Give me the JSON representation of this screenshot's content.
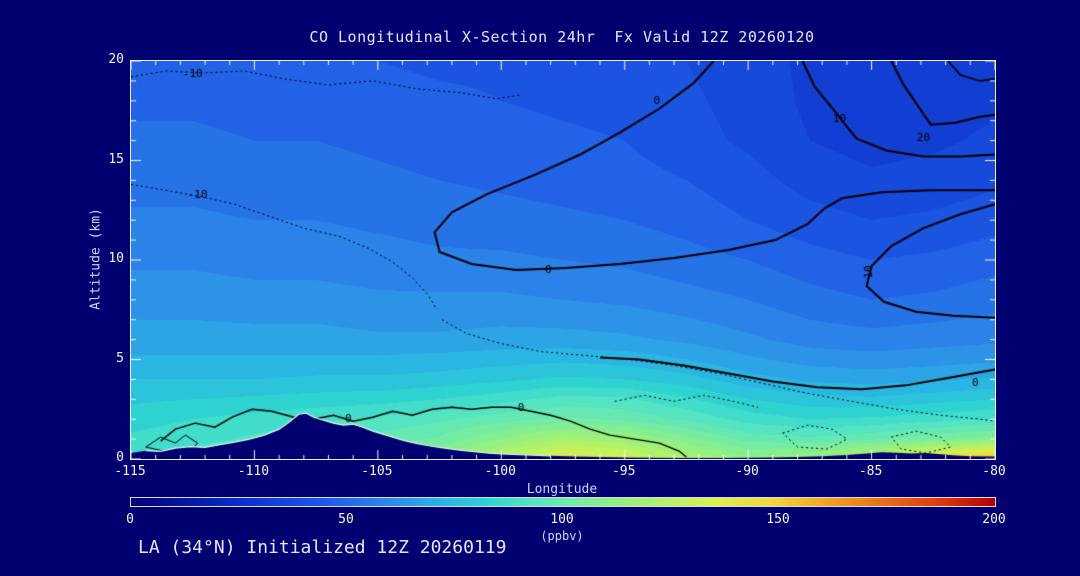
{
  "page": {
    "background_color": "#000070",
    "text_color": "#e8e4ff",
    "axis_text_color": "#ccd6ff",
    "tick_text_color": "#f4f4f4",
    "title": "CO Longitudinal X-Section 24hr  Fx Valid 12Z 20260120",
    "footer": "LA (34°N) Initialized 12Z 20260119"
  },
  "chart_data": {
    "type": "heatmap",
    "title": "CO Longitudinal X-Section 24hr  Fx Valid 12Z 20260120",
    "xlabel": "Longitude",
    "ylabel": "Altitude (km)",
    "units": "ppbv",
    "xlim": [
      -115,
      -80
    ],
    "ylim": [
      0,
      20
    ],
    "x_ticks": [
      -115,
      -110,
      -105,
      -100,
      -95,
      -90,
      -85,
      -80
    ],
    "y_ticks": [
      0,
      5,
      10,
      15,
      20
    ],
    "band_interval": 5,
    "grid_lons": [
      -115,
      -112.5,
      -110,
      -107.5,
      -105,
      -102.5,
      -100,
      -97.5,
      -95,
      -92.5,
      -90,
      -87.5,
      -85,
      -82.5,
      -80
    ],
    "grid_alts": [
      0,
      1,
      2,
      3,
      4,
      5,
      6,
      8,
      10,
      12,
      14,
      16,
      18,
      20
    ],
    "values": [
      [
        90,
        93,
        96,
        100,
        104,
        112,
        126,
        140,
        134,
        121,
        112,
        116,
        128,
        146,
        158
      ],
      [
        86,
        88,
        91,
        94,
        97,
        101,
        110,
        120,
        116,
        107,
        98,
        96,
        99,
        104,
        108
      ],
      [
        83,
        85,
        87,
        89,
        91,
        94,
        98,
        101,
        99,
        94,
        88,
        85,
        86,
        88,
        90
      ],
      [
        79,
        80,
        81,
        82,
        83,
        85,
        88,
        92,
        91,
        86,
        80,
        77,
        76,
        78,
        80
      ],
      [
        75,
        75,
        75,
        76,
        76,
        77,
        79,
        81,
        80,
        77,
        72,
        69,
        68,
        69,
        71
      ],
      [
        71,
        71,
        71,
        71,
        71,
        72,
        73,
        74,
        73,
        70,
        66,
        63,
        62,
        63,
        64
      ],
      [
        67,
        67,
        67,
        67,
        66,
        66,
        67,
        67,
        66,
        64,
        61,
        58,
        57,
        58,
        59
      ],
      [
        63,
        63,
        62,
        62,
        61,
        61,
        61,
        60,
        59,
        57,
        55,
        52,
        50,
        51,
        53
      ],
      [
        59,
        59,
        58,
        58,
        57,
        56,
        56,
        55,
        54,
        52,
        50,
        47,
        45,
        46,
        48
      ],
      [
        56,
        56,
        55,
        55,
        54,
        53,
        52,
        51,
        50,
        48,
        45,
        42,
        40,
        41,
        43
      ],
      [
        53,
        53,
        52,
        52,
        51,
        50,
        49,
        48,
        47,
        45,
        42,
        38,
        36,
        37,
        39
      ],
      [
        51,
        51,
        50,
        50,
        49,
        48,
        47,
        46,
        45,
        42,
        39,
        35,
        33,
        34,
        36
      ],
      [
        49,
        49,
        48,
        48,
        47,
        46,
        45,
        44,
        43,
        41,
        38,
        34,
        32,
        33,
        34
      ],
      [
        47,
        47,
        46,
        46,
        45,
        44,
        44,
        43,
        42,
        40,
        37,
        34,
        32,
        32,
        33
      ]
    ],
    "colormap": [
      {
        "v": 0,
        "c": "#000074"
      },
      {
        "v": 25,
        "c": "#0a2ec8"
      },
      {
        "v": 45,
        "c": "#1e5ae6"
      },
      {
        "v": 60,
        "c": "#2e8ae8"
      },
      {
        "v": 72,
        "c": "#2ab4e4"
      },
      {
        "v": 82,
        "c": "#2cd2d2"
      },
      {
        "v": 92,
        "c": "#52e4c4"
      },
      {
        "v": 102,
        "c": "#74eca4"
      },
      {
        "v": 112,
        "c": "#92f084"
      },
      {
        "v": 124,
        "c": "#b4f266"
      },
      {
        "v": 136,
        "c": "#dcee4e"
      },
      {
        "v": 148,
        "c": "#f0d838"
      },
      {
        "v": 160,
        "c": "#f0a824"
      },
      {
        "v": 175,
        "c": "#e86c14"
      },
      {
        "v": 188,
        "c": "#d8380a"
      },
      {
        "v": 200,
        "c": "#b00000"
      }
    ],
    "colorbar": {
      "min": 0,
      "max": 200,
      "ticks": [
        0,
        50,
        100,
        150,
        200
      ],
      "label": "(ppbv)"
    },
    "terrain_color": "#000070",
    "terrain_edge_color": "#ddfaf0",
    "terrain": [
      [
        -115,
        0.3
      ],
      [
        -114.4,
        0.42
      ],
      [
        -113.8,
        0.38
      ],
      [
        -113.2,
        0.55
      ],
      [
        -112.6,
        0.62
      ],
      [
        -112,
        0.58
      ],
      [
        -111.4,
        0.72
      ],
      [
        -110.8,
        0.85
      ],
      [
        -110.2,
        1.0
      ],
      [
        -109.6,
        1.2
      ],
      [
        -109,
        1.5
      ],
      [
        -108.6,
        1.85
      ],
      [
        -108.2,
        2.25
      ],
      [
        -107.9,
        2.3
      ],
      [
        -107.6,
        2.1
      ],
      [
        -107.2,
        1.95
      ],
      [
        -106.8,
        1.8
      ],
      [
        -106.4,
        1.7
      ],
      [
        -106,
        1.75
      ],
      [
        -105.6,
        1.6
      ],
      [
        -105.2,
        1.4
      ],
      [
        -104.8,
        1.25
      ],
      [
        -104.4,
        1.1
      ],
      [
        -104,
        0.95
      ],
      [
        -103.5,
        0.8
      ],
      [
        -103,
        0.68
      ],
      [
        -102.5,
        0.58
      ],
      [
        -102,
        0.5
      ],
      [
        -101.5,
        0.42
      ],
      [
        -101,
        0.36
      ],
      [
        -100.5,
        0.3
      ],
      [
        -100,
        0.26
      ],
      [
        -99,
        0.2
      ],
      [
        -98,
        0.16
      ],
      [
        -97,
        0.12
      ],
      [
        -96,
        0.1
      ],
      [
        -95,
        0.08
      ],
      [
        -94,
        0.06
      ],
      [
        -93,
        0.05
      ],
      [
        -92,
        0.05
      ],
      [
        -91,
        0.05
      ],
      [
        -90,
        0.06
      ],
      [
        -89,
        0.08
      ],
      [
        -88,
        0.1
      ],
      [
        -87,
        0.14
      ],
      [
        -86,
        0.2
      ],
      [
        -85.2,
        0.28
      ],
      [
        -84.6,
        0.34
      ],
      [
        -84,
        0.32
      ],
      [
        -83.4,
        0.28
      ],
      [
        -82.8,
        0.3
      ],
      [
        -82.2,
        0.24
      ],
      [
        -81.6,
        0.18
      ],
      [
        -81,
        0.14
      ],
      [
        -80,
        0.12
      ]
    ],
    "contour_levels_shown": [
      -10,
      0,
      10,
      20
    ],
    "contours": [
      {
        "level": -10,
        "style": "dotted",
        "w": 1,
        "points": [
          [
            -115,
            19.2
          ],
          [
            -113.6,
            19.5
          ],
          [
            -112,
            19.4
          ],
          [
            -110.4,
            19.5
          ],
          [
            -108.8,
            19.1
          ],
          [
            -107,
            18.8
          ],
          [
            -105.2,
            19.0
          ],
          [
            -103.4,
            18.6
          ],
          [
            -101.6,
            18.4
          ],
          [
            -100.2,
            18.1
          ],
          [
            -99.2,
            18.3
          ]
        ]
      },
      {
        "level": -10,
        "style": "dotted",
        "w": 1,
        "points": [
          [
            -115,
            13.8
          ],
          [
            -113.6,
            13.5
          ],
          [
            -112.2,
            13.2
          ],
          [
            -110.8,
            12.8
          ],
          [
            -109.4,
            12.2
          ],
          [
            -108,
            11.6
          ],
          [
            -106.6,
            11.2
          ],
          [
            -105.4,
            10.6
          ],
          [
            -104.4,
            9.9
          ],
          [
            -103.6,
            9.1
          ],
          [
            -103,
            8.3
          ],
          [
            -102.6,
            7.5
          ]
        ]
      },
      {
        "level": -10,
        "style": "dotted",
        "w": 1,
        "points": [
          [
            -102.4,
            7.0
          ],
          [
            -101.4,
            6.3
          ],
          [
            -100,
            5.8
          ],
          [
            -98.4,
            5.4
          ],
          [
            -96.6,
            5.2
          ],
          [
            -94.8,
            5.0
          ],
          [
            -93,
            4.7
          ],
          [
            -91.2,
            4.3
          ],
          [
            -89.4,
            3.8
          ],
          [
            -87.6,
            3.3
          ],
          [
            -85.8,
            2.9
          ],
          [
            -84,
            2.5
          ],
          [
            -82.2,
            2.2
          ],
          [
            -80.6,
            2.0
          ],
          [
            -80,
            1.9
          ]
        ]
      },
      {
        "level": 0,
        "style": "solid",
        "w": 2,
        "points": [
          [
            -91.4,
            20
          ],
          [
            -92.2,
            18.9
          ],
          [
            -93.6,
            17.6
          ],
          [
            -95.2,
            16.4
          ],
          [
            -96.8,
            15.3
          ],
          [
            -98.6,
            14.3
          ],
          [
            -100.6,
            13.3
          ],
          [
            -102,
            12.4
          ],
          [
            -102.7,
            11.4
          ],
          [
            -102.5,
            10.4
          ],
          [
            -101.2,
            9.8
          ],
          [
            -99.4,
            9.5
          ],
          [
            -97.4,
            9.6
          ],
          [
            -95.2,
            9.8
          ],
          [
            -93,
            10.1
          ],
          [
            -90.8,
            10.5
          ],
          [
            -88.9,
            11.0
          ],
          [
            -87.6,
            11.8
          ],
          [
            -86.9,
            12.6
          ],
          [
            -86.2,
            13.1
          ],
          [
            -84.6,
            13.4
          ],
          [
            -82.6,
            13.5
          ],
          [
            -80.8,
            13.5
          ],
          [
            -80,
            13.5
          ]
        ]
      },
      {
        "level": 10,
        "style": "solid",
        "w": 2,
        "points": [
          [
            -87.8,
            20
          ],
          [
            -87.3,
            18.7
          ],
          [
            -86.5,
            17.5
          ],
          [
            -86.2,
            17.0
          ],
          [
            -85.6,
            16.1
          ],
          [
            -84.4,
            15.5
          ],
          [
            -82.9,
            15.2
          ],
          [
            -81.4,
            15.2
          ],
          [
            -80,
            15.3
          ]
        ]
      },
      {
        "level": 20,
        "style": "solid",
        "w": 2,
        "points": [
          [
            -84.2,
            20
          ],
          [
            -83.7,
            18.8
          ],
          [
            -83.1,
            17.7
          ],
          [
            -82.6,
            16.8
          ],
          [
            -81.6,
            16.9
          ],
          [
            -80.6,
            17.2
          ],
          [
            -80,
            17.3
          ]
        ]
      },
      {
        "level": 20,
        "style": "solid",
        "w": 1.6,
        "points": [
          [
            -81.9,
            20
          ],
          [
            -81.4,
            19.3
          ],
          [
            -80.6,
            19.0
          ],
          [
            -80,
            19.1
          ]
        ]
      },
      {
        "level": 10,
        "style": "solid",
        "w": 2,
        "points": [
          [
            -80,
            12.8
          ],
          [
            -81.4,
            12.3
          ],
          [
            -82.9,
            11.6
          ],
          [
            -84.2,
            10.7
          ],
          [
            -85.0,
            9.7
          ],
          [
            -85.2,
            8.7
          ],
          [
            -84.5,
            7.9
          ],
          [
            -83.2,
            7.4
          ],
          [
            -81.7,
            7.2
          ],
          [
            -80,
            7.1
          ]
        ]
      },
      {
        "level": 0,
        "style": "solid",
        "w": 2,
        "points": [
          [
            -80,
            4.5
          ],
          [
            -81.8,
            4.1
          ],
          [
            -83.6,
            3.7
          ],
          [
            -85.4,
            3.5
          ],
          [
            -87.2,
            3.6
          ],
          [
            -89,
            3.9
          ],
          [
            -90.8,
            4.3
          ],
          [
            -92.6,
            4.7
          ],
          [
            -94.4,
            5.0
          ],
          [
            -96,
            5.1
          ]
        ]
      },
      {
        "level": 0,
        "style": "solid",
        "w": 1.4,
        "points": [
          [
            -113.8,
            0.9
          ],
          [
            -113.2,
            1.5
          ],
          [
            -112.4,
            1.8
          ],
          [
            -111.6,
            1.6
          ],
          [
            -110.9,
            2.1
          ],
          [
            -110.1,
            2.5
          ],
          [
            -109.3,
            2.4
          ],
          [
            -108.4,
            2.1
          ],
          [
            -107.6,
            2.0
          ],
          [
            -106.8,
            2.2
          ],
          [
            -106,
            1.9
          ],
          [
            -105.2,
            2.1
          ],
          [
            -104.4,
            2.4
          ],
          [
            -103.6,
            2.2
          ],
          [
            -102.8,
            2.5
          ],
          [
            -102,
            2.6
          ],
          [
            -101.2,
            2.5
          ],
          [
            -100.4,
            2.6
          ],
          [
            -99.6,
            2.6
          ],
          [
            -98.8,
            2.4
          ],
          [
            -98,
            2.2
          ],
          [
            -97.2,
            1.9
          ],
          [
            -96.4,
            1.5
          ],
          [
            -95.6,
            1.2
          ],
          [
            -94.6,
            1.0
          ],
          [
            -93.6,
            0.8
          ],
          [
            -92.8,
            0.4
          ],
          [
            -92.5,
            0.1
          ]
        ]
      },
      {
        "level": 0,
        "style": "solid",
        "w": 1,
        "points": [
          [
            -114.4,
            0.6
          ],
          [
            -113.8,
            1.1
          ],
          [
            -113.2,
            0.8
          ],
          [
            -112.8,
            1.2
          ],
          [
            -112.3,
            0.8
          ],
          [
            -112.6,
            0.4
          ],
          [
            -113.5,
            0.35
          ],
          [
            -114.4,
            0.6
          ]
        ]
      },
      {
        "level": -10,
        "style": "dotted",
        "w": 1,
        "points": [
          [
            -95.4,
            2.9
          ],
          [
            -94.2,
            3.2
          ],
          [
            -93,
            2.9
          ],
          [
            -91.8,
            3.2
          ],
          [
            -90.6,
            2.9
          ],
          [
            -89.6,
            2.6
          ]
        ]
      },
      {
        "level": -10,
        "style": "dotted",
        "w": 1,
        "points": [
          [
            -88.6,
            1.3
          ],
          [
            -87.6,
            1.7
          ],
          [
            -86.6,
            1.5
          ],
          [
            -86,
            1.0
          ],
          [
            -86.8,
            0.5
          ],
          [
            -88,
            0.6
          ],
          [
            -88.6,
            1.3
          ]
        ]
      },
      {
        "level": -10,
        "style": "dotted",
        "w": 1,
        "points": [
          [
            -84.2,
            1.1
          ],
          [
            -83.2,
            1.4
          ],
          [
            -82.2,
            1.1
          ],
          [
            -81.8,
            0.6
          ],
          [
            -82.8,
            0.3
          ],
          [
            -83.8,
            0.5
          ],
          [
            -84.2,
            1.1
          ]
        ]
      }
    ],
    "contour_labels": [
      {
        "text": "-10",
        "lon": -112.5,
        "alt": 19.35,
        "rot": 0
      },
      {
        "text": "-10",
        "lon": -112.3,
        "alt": 13.25,
        "rot": 0
      },
      {
        "text": "0",
        "lon": -93.7,
        "alt": 18.0,
        "rot": 0
      },
      {
        "text": "10",
        "lon": -86.3,
        "alt": 17.1,
        "rot": 0
      },
      {
        "text": "20",
        "lon": -82.9,
        "alt": 16.1,
        "rot": 0
      },
      {
        "text": "10",
        "lon": -85.1,
        "alt": 9.4,
        "rot": -90
      },
      {
        "text": "0",
        "lon": -98.1,
        "alt": 9.5,
        "rot": 0
      },
      {
        "text": "0",
        "lon": -80.8,
        "alt": 3.8,
        "rot": 0
      },
      {
        "text": "0",
        "lon": -106.2,
        "alt": 2.0,
        "rot": 0
      },
      {
        "text": "0",
        "lon": -99.2,
        "alt": 2.55,
        "rot": 0
      }
    ]
  }
}
